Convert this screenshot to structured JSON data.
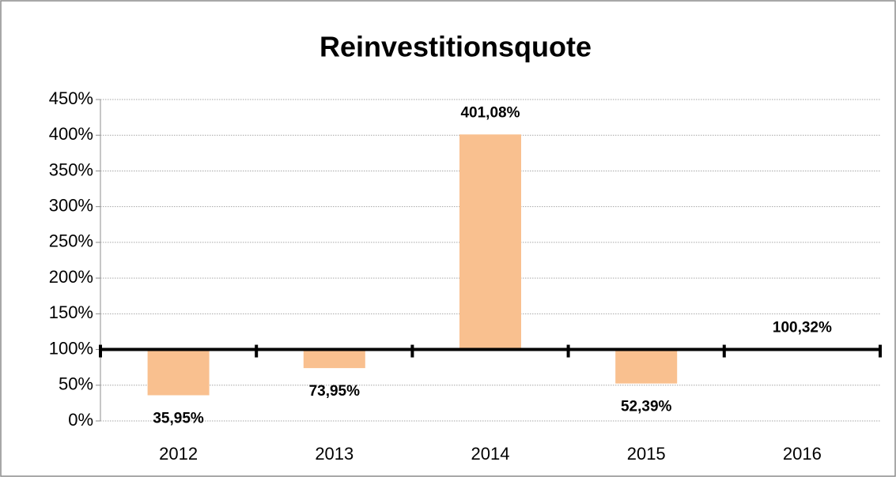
{
  "chart_data": {
    "type": "bar",
    "title": "Reinvestitionsquote",
    "categories": [
      "2012",
      "2013",
      "2014",
      "2015",
      "2016"
    ],
    "values": [
      35.95,
      73.95,
      401.08,
      52.39,
      100.32
    ],
    "value_labels": [
      "35,95%",
      "73,95%",
      "401,08%",
      "52,39%",
      "100,32%"
    ],
    "color": "#f9c08f",
    "ylim": [
      0,
      450
    ],
    "yticks": [
      {
        "value": 0,
        "label": "0%"
      },
      {
        "value": 50,
        "label": "50%"
      },
      {
        "value": 100,
        "label": "100%"
      },
      {
        "value": 150,
        "label": "150%"
      },
      {
        "value": 200,
        "label": "200%"
      },
      {
        "value": 250,
        "label": "250%"
      },
      {
        "value": 300,
        "label": "300%"
      },
      {
        "value": 350,
        "label": "350%"
      },
      {
        "value": 400,
        "label": "400%"
      },
      {
        "value": 450,
        "label": "450%"
      }
    ],
    "x_axis_crosses": 100,
    "grid": true
  }
}
